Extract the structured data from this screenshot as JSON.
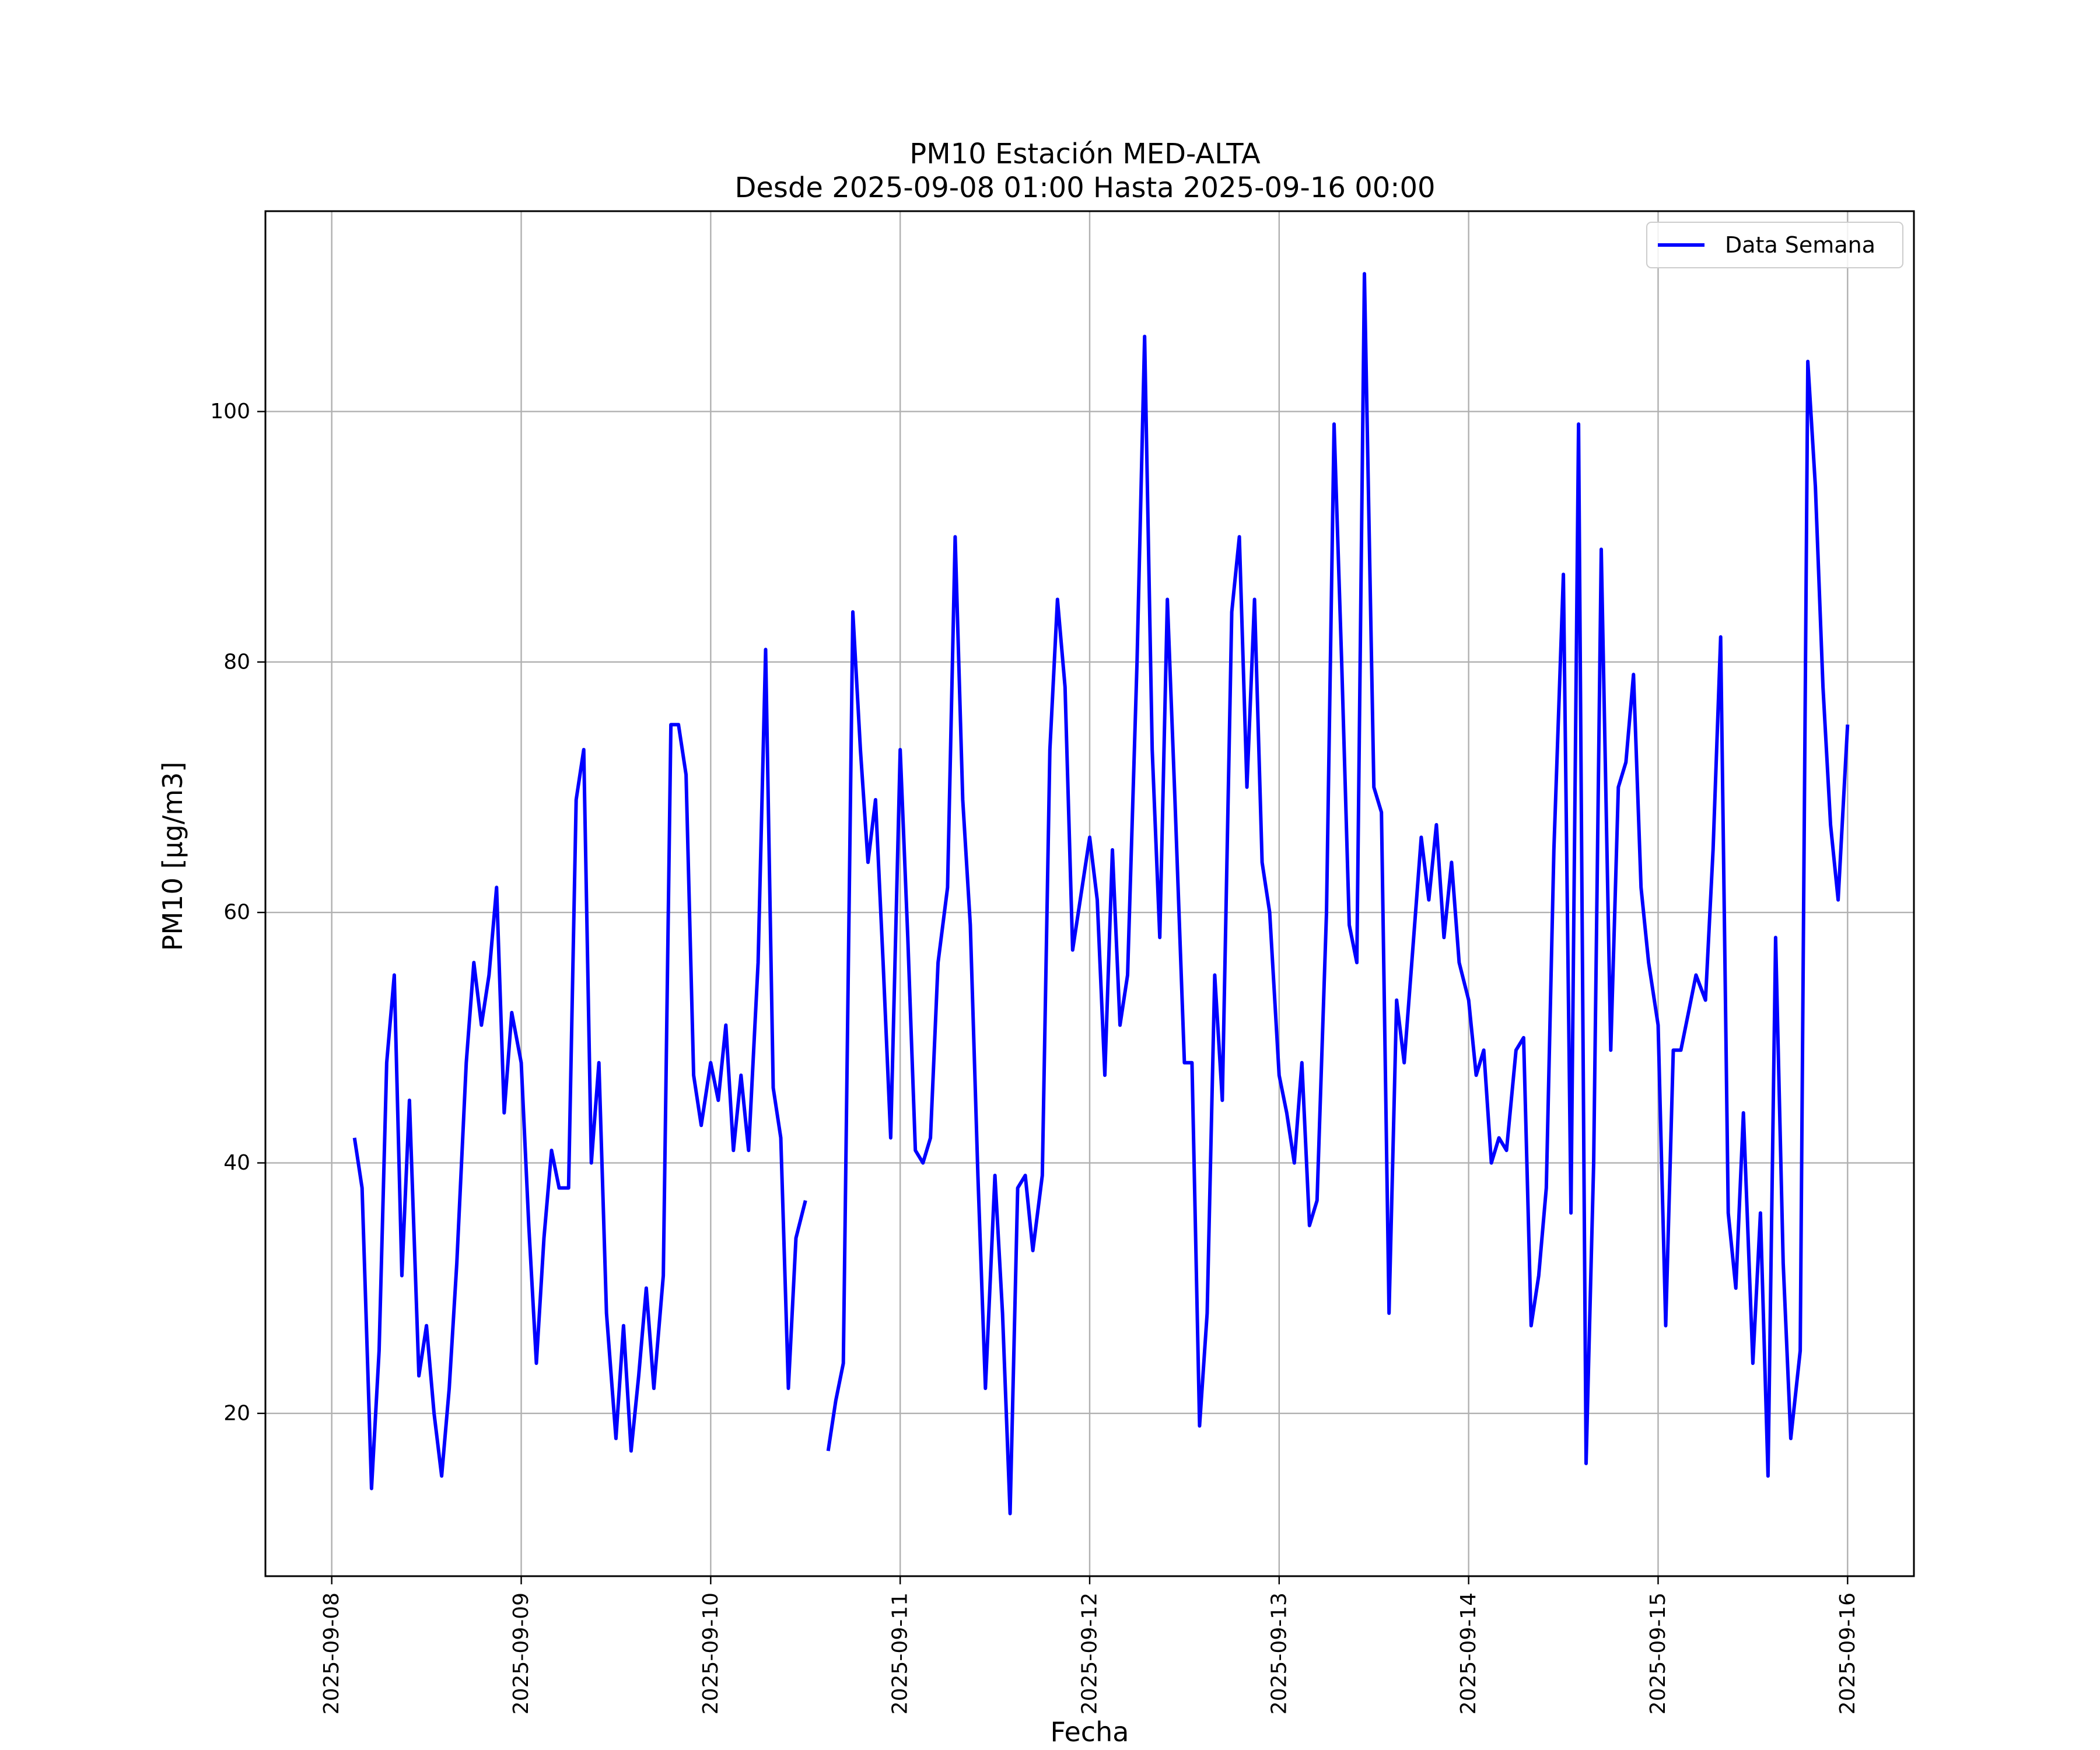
{
  "chart_data": {
    "type": "line",
    "title_line1": "PM10 Estación MED-ALTA",
    "title_line2": "Desde 2025-09-08 01:00 Hasta 2025-09-16 00:00",
    "xlabel": "Fecha",
    "ylabel": "PM10 [µg/m3]",
    "grid": true,
    "legend_position": "top-right",
    "xlim_days": [
      -0.35,
      8.35
    ],
    "ylim": [
      7,
      116
    ],
    "x_tick_labels": [
      "2025-09-08",
      "2025-09-09",
      "2025-09-10",
      "2025-09-11",
      "2025-09-12",
      "2025-09-13",
      "2025-09-14",
      "2025-09-15",
      "2025-09-16"
    ],
    "y_ticks": [
      20,
      40,
      60,
      80,
      100
    ],
    "x_unit": "days since 2025-09-08 00:00",
    "series": [
      {
        "name": "Data Semana",
        "color": "#0000ff",
        "points": [
          [
            0.12,
            42
          ],
          [
            0.16,
            38
          ],
          [
            0.21,
            14
          ],
          [
            0.25,
            25
          ],
          [
            0.29,
            48
          ],
          [
            0.33,
            55
          ],
          [
            0.37,
            31
          ],
          [
            0.41,
            45
          ],
          [
            0.46,
            23
          ],
          [
            0.5,
            27
          ],
          [
            0.54,
            20
          ],
          [
            0.58,
            15
          ],
          [
            0.62,
            22
          ],
          [
            0.66,
            32
          ],
          [
            0.71,
            48
          ],
          [
            0.75,
            56
          ],
          [
            0.79,
            51
          ],
          [
            0.83,
            55
          ],
          [
            0.87,
            62
          ],
          [
            0.91,
            44
          ],
          [
            0.95,
            52
          ],
          [
            1.0,
            48
          ],
          [
            1.04,
            35
          ],
          [
            1.08,
            24
          ],
          [
            1.12,
            34
          ],
          [
            1.16,
            41
          ],
          [
            1.2,
            38
          ],
          [
            1.25,
            38
          ],
          [
            1.29,
            69
          ],
          [
            1.33,
            73
          ],
          [
            1.37,
            40
          ],
          [
            1.41,
            48
          ],
          [
            1.45,
            28
          ],
          [
            1.5,
            18
          ],
          [
            1.54,
            27
          ],
          [
            1.58,
            17
          ],
          [
            1.62,
            23
          ],
          [
            1.66,
            30
          ],
          [
            1.7,
            22
          ],
          [
            1.75,
            31
          ],
          [
            1.79,
            75
          ],
          [
            1.83,
            75
          ],
          [
            1.87,
            71
          ],
          [
            1.91,
            47
          ],
          [
            1.95,
            43
          ],
          [
            2.0,
            48
          ],
          [
            2.04,
            45
          ],
          [
            2.08,
            51
          ],
          [
            2.12,
            41
          ],
          [
            2.16,
            47
          ],
          [
            2.2,
            41
          ],
          [
            2.25,
            56
          ],
          [
            2.29,
            81
          ],
          [
            2.33,
            46
          ],
          [
            2.37,
            42
          ],
          [
            2.41,
            22
          ],
          [
            2.45,
            34
          ],
          [
            2.5,
            37
          ],
          null,
          [
            2.62,
            17
          ],
          [
            2.66,
            21
          ],
          [
            2.7,
            24
          ],
          [
            2.75,
            84
          ],
          [
            2.79,
            73
          ],
          [
            2.83,
            64
          ],
          [
            2.87,
            69
          ],
          [
            2.91,
            56
          ],
          [
            2.95,
            42
          ],
          [
            3.0,
            73
          ],
          [
            3.04,
            58
          ],
          [
            3.08,
            41
          ],
          [
            3.12,
            40
          ],
          [
            3.16,
            42
          ],
          [
            3.2,
            56
          ],
          [
            3.25,
            62
          ],
          [
            3.29,
            90
          ],
          [
            3.33,
            69
          ],
          [
            3.37,
            59
          ],
          [
            3.41,
            39
          ],
          [
            3.45,
            22
          ],
          [
            3.5,
            39
          ],
          [
            3.54,
            28
          ],
          [
            3.58,
            12
          ],
          [
            3.62,
            38
          ],
          [
            3.66,
            39
          ],
          [
            3.7,
            33
          ],
          [
            3.75,
            39
          ],
          [
            3.79,
            73
          ],
          [
            3.83,
            85
          ],
          [
            3.87,
            78
          ],
          [
            3.91,
            57
          ],
          [
            3.95,
            61
          ],
          [
            4.0,
            66
          ],
          [
            4.04,
            61
          ],
          [
            4.08,
            47
          ],
          [
            4.12,
            65
          ],
          [
            4.16,
            51
          ],
          [
            4.2,
            55
          ],
          [
            4.25,
            80
          ],
          [
            4.29,
            106
          ],
          [
            4.33,
            73
          ],
          [
            4.37,
            58
          ],
          [
            4.41,
            85
          ],
          [
            4.45,
            69
          ],
          [
            4.5,
            48
          ],
          [
            4.54,
            48
          ],
          [
            4.58,
            19
          ],
          [
            4.62,
            28
          ],
          [
            4.66,
            55
          ],
          [
            4.7,
            45
          ],
          [
            4.75,
            84
          ],
          [
            4.79,
            90
          ],
          [
            4.83,
            70
          ],
          [
            4.87,
            85
          ],
          [
            4.91,
            64
          ],
          [
            4.95,
            60
          ],
          [
            5.0,
            47
          ],
          [
            5.04,
            44
          ],
          [
            5.08,
            40
          ],
          [
            5.12,
            48
          ],
          [
            5.16,
            35
          ],
          [
            5.2,
            37
          ],
          [
            5.25,
            60
          ],
          [
            5.29,
            99
          ],
          [
            5.33,
            80
          ],
          [
            5.37,
            59
          ],
          [
            5.41,
            56
          ],
          [
            5.45,
            111
          ],
          [
            5.5,
            70
          ],
          [
            5.54,
            68
          ],
          [
            5.58,
            28
          ],
          [
            5.62,
            53
          ],
          [
            5.66,
            48
          ],
          [
            5.7,
            56
          ],
          [
            5.75,
            66
          ],
          [
            5.79,
            61
          ],
          [
            5.83,
            67
          ],
          [
            5.87,
            58
          ],
          [
            5.91,
            64
          ],
          [
            5.95,
            56
          ],
          [
            6.0,
            53
          ],
          [
            6.04,
            47
          ],
          [
            6.08,
            49
          ],
          [
            6.12,
            40
          ],
          [
            6.16,
            42
          ],
          [
            6.2,
            41
          ],
          [
            6.25,
            49
          ],
          [
            6.29,
            50
          ],
          [
            6.33,
            27
          ],
          [
            6.37,
            31
          ],
          [
            6.41,
            38
          ],
          [
            6.45,
            65
          ],
          [
            6.5,
            87
          ],
          [
            6.54,
            36
          ],
          [
            6.58,
            99
          ],
          [
            6.62,
            16
          ],
          [
            6.66,
            40
          ],
          [
            6.7,
            89
          ],
          [
            6.75,
            49
          ],
          [
            6.79,
            70
          ],
          [
            6.83,
            72
          ],
          [
            6.87,
            79
          ],
          [
            6.91,
            62
          ],
          [
            6.95,
            56
          ],
          [
            7.0,
            51
          ],
          [
            7.04,
            27
          ],
          [
            7.08,
            49
          ],
          [
            7.12,
            49
          ],
          [
            7.16,
            52
          ],
          [
            7.2,
            55
          ],
          [
            7.25,
            53
          ],
          [
            7.29,
            65
          ],
          [
            7.33,
            82
          ],
          [
            7.37,
            36
          ],
          [
            7.41,
            30
          ],
          [
            7.45,
            44
          ],
          [
            7.5,
            24
          ],
          [
            7.54,
            36
          ],
          [
            7.58,
            15
          ],
          [
            7.62,
            58
          ],
          [
            7.66,
            32
          ],
          [
            7.7,
            18
          ],
          [
            7.75,
            25
          ],
          [
            7.79,
            104
          ],
          [
            7.83,
            94
          ],
          [
            7.87,
            78
          ],
          [
            7.91,
            67
          ],
          [
            7.95,
            61
          ],
          [
            8.0,
            75
          ]
        ]
      }
    ]
  }
}
